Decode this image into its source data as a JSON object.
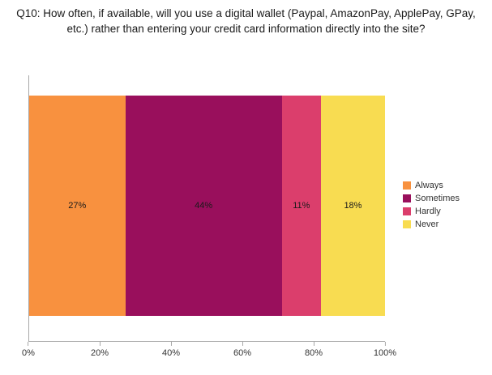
{
  "chart_data": {
    "type": "bar",
    "subtype": "horizontal-stacked-100",
    "title": "Q10: How often, if available, will you use a digital wallet (Paypal, AmazonPay, ApplePay, GPay, etc.) rather than entering your credit card information directly into the site?",
    "categories": [
      "Always",
      "Sometimes",
      "Hardly",
      "Never"
    ],
    "values": [
      27,
      44,
      11,
      18
    ],
    "data_labels": [
      "27%",
      "44%",
      "11%",
      "18%"
    ],
    "colors": [
      "#F8913F",
      "#990F5C",
      "#DB3E6C",
      "#F8DC51"
    ],
    "x_ticks": [
      "0%",
      "20%",
      "40%",
      "60%",
      "80%",
      "100%"
    ],
    "xlim": [
      0,
      100
    ],
    "xlabel": "",
    "ylabel": "",
    "grid": false,
    "legend_position": "right",
    "legend_entries": [
      "Always",
      "Sometimes",
      "Hardly",
      "Never"
    ]
  }
}
